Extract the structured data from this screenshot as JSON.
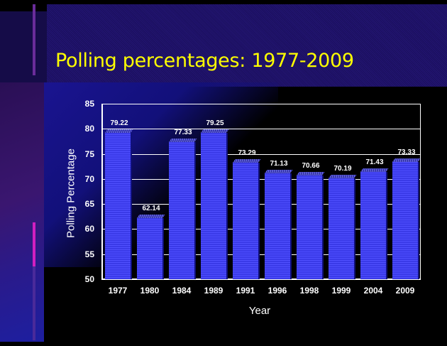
{
  "slide": {
    "title": "Polling percentages: 1977-2009",
    "title_color": "#ffff00",
    "background_color": "#000000"
  },
  "chart_data": {
    "type": "bar",
    "title": "Polling percentages: 1977-2009",
    "xlabel": "Year",
    "ylabel": "Polling Percentage",
    "categories": [
      "1977",
      "1980",
      "1984",
      "1989",
      "1991",
      "1996",
      "1998",
      "1999",
      "2004",
      "2009"
    ],
    "values": [
      79.22,
      62.14,
      77.33,
      79.25,
      73.29,
      71.13,
      70.66,
      70.19,
      71.43,
      73.33
    ],
    "value_labels": [
      "79.22",
      "62.14",
      "77.33",
      "79.25",
      "73.29",
      "71.13",
      "70.66",
      "70.19",
      "71.43",
      "73.33"
    ],
    "ylim": [
      50,
      85
    ],
    "yticks": [
      "85",
      "80",
      "75",
      "70",
      "65",
      "60",
      "55",
      "50"
    ],
    "grid": true,
    "legend": "none",
    "bar_color": "#3a3ae8"
  }
}
